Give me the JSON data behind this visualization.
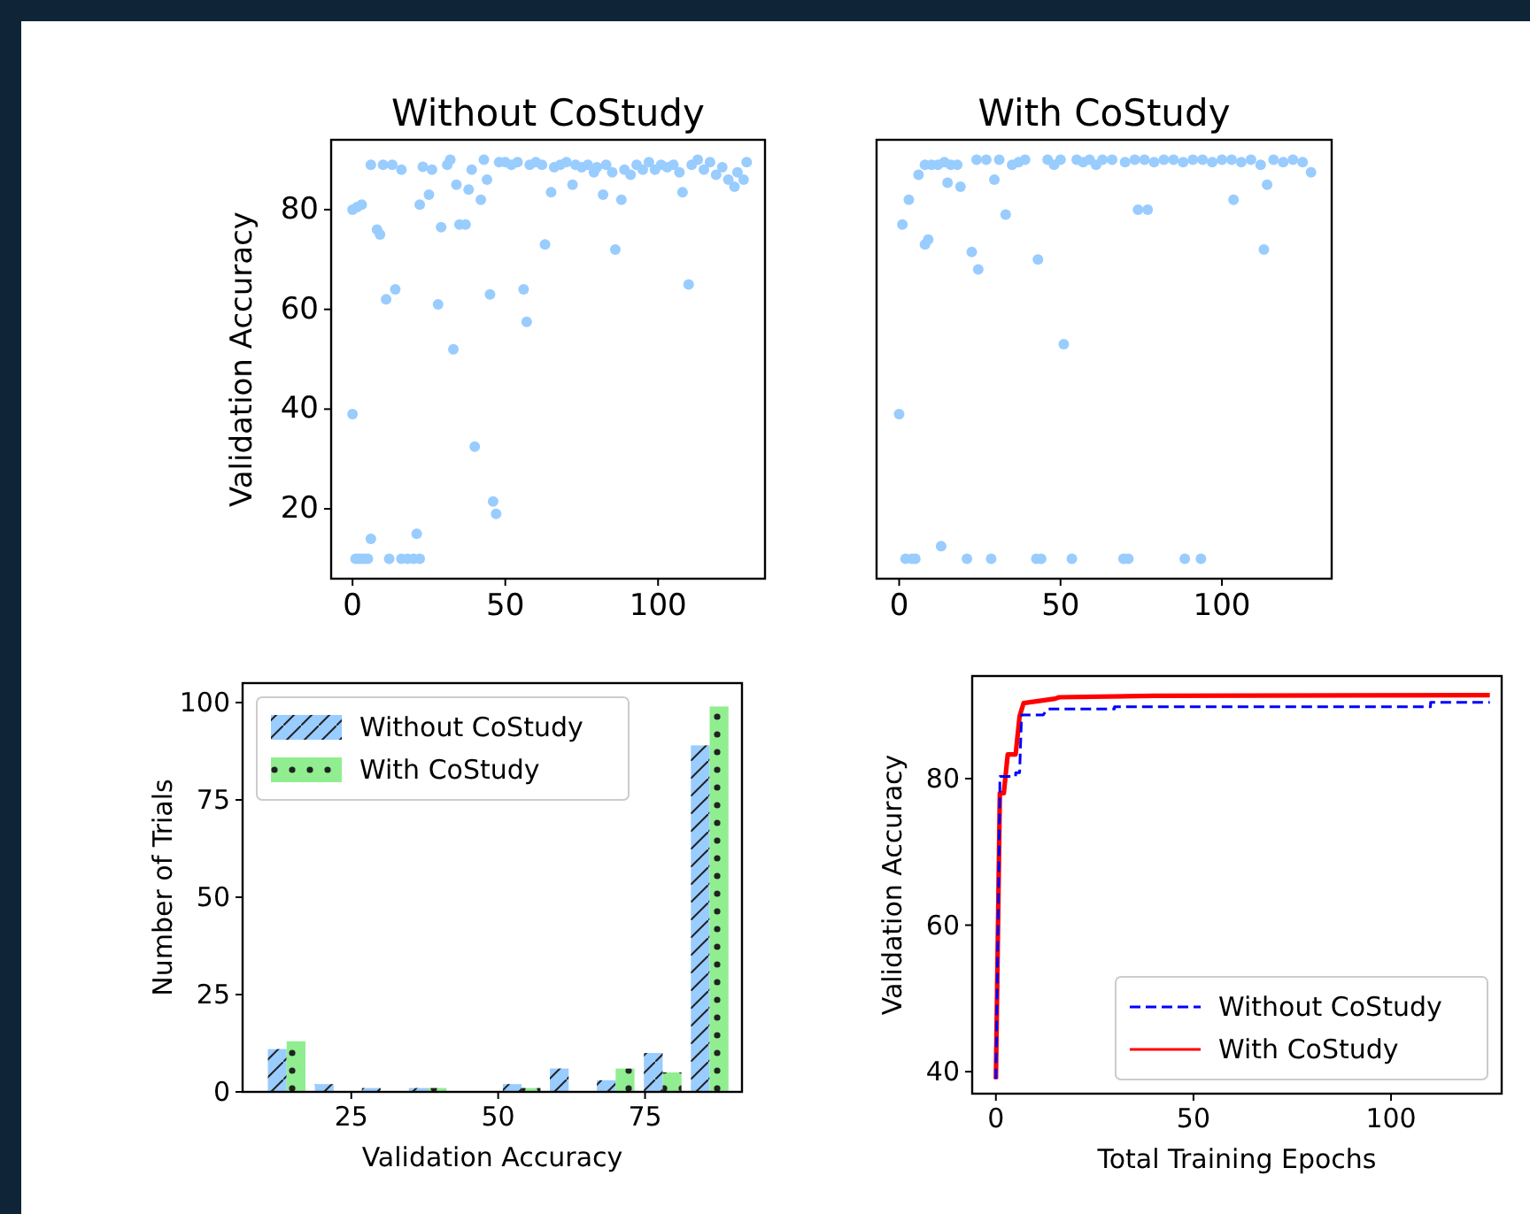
{
  "chart_data": [
    {
      "type": "scatter",
      "title": "Without CoStudy",
      "ylabel": "Validation Accuracy",
      "marker": "circle",
      "xlim": [
        -7,
        135
      ],
      "ylim": [
        6,
        94
      ],
      "xticks": [
        0,
        50,
        100
      ],
      "yticks": [
        20,
        40,
        60,
        80
      ],
      "series": [
        {
          "color": "#99ccff",
          "x": [
            0,
            0,
            1.5,
            3,
            1,
            2,
            3,
            4,
            5,
            6,
            6,
            8,
            9,
            10,
            13,
            16,
            11,
            14,
            12,
            16,
            18,
            20,
            22,
            21,
            22,
            25,
            23,
            26,
            28,
            29,
            31,
            32,
            33,
            34,
            35,
            37,
            38,
            39,
            40,
            42,
            43,
            44,
            45,
            46,
            47,
            48,
            50,
            52,
            54,
            56,
            57,
            58,
            60,
            62,
            63,
            65,
            66,
            68,
            70,
            72,
            73,
            75,
            77,
            79,
            80,
            82,
            83,
            85,
            86,
            88,
            89,
            91,
            93,
            95,
            97,
            99,
            101,
            103,
            105,
            107,
            108,
            110,
            111,
            113,
            115,
            117,
            119,
            121,
            123,
            125,
            126,
            128,
            129
          ],
          "values": [
            39,
            80,
            80.5,
            81,
            10,
            10,
            10,
            10,
            10,
            14,
            89,
            76,
            75,
            89,
            89,
            88,
            62,
            64,
            10,
            10,
            10,
            10,
            10,
            15,
            81,
            83,
            88.6,
            88,
            61,
            76.5,
            89,
            90,
            52,
            85,
            77,
            77,
            84,
            88,
            32.5,
            82,
            90,
            86,
            63,
            21.5,
            19,
            89.5,
            89.5,
            89,
            89.5,
            64,
            57.5,
            89,
            89.5,
            89,
            73,
            83.5,
            88.5,
            89,
            89.5,
            85,
            89,
            88.5,
            89,
            87.5,
            88.5,
            83,
            89,
            87.5,
            72,
            82,
            88,
            87,
            89,
            88,
            89.5,
            88,
            89,
            88.5,
            89,
            87.5,
            83.5,
            65,
            89,
            90,
            88,
            89.5,
            87,
            88.5,
            86,
            84.6,
            87.5,
            86,
            89.5
          ]
        }
      ]
    },
    {
      "type": "scatter",
      "title": "With CoStudy",
      "marker": "circle",
      "tick_labels": "x",
      "xlim": [
        -7,
        134
      ],
      "ylim": [
        6,
        94
      ],
      "xticks": [
        0,
        50,
        100
      ],
      "series": [
        {
          "color": "#99ccff",
          "x": [
            0,
            1,
            2,
            4,
            5,
            3,
            6,
            8,
            10,
            12,
            14,
            16,
            8,
            9,
            13,
            15,
            19,
            18,
            21,
            22.5,
            24.5,
            24,
            27,
            28.5,
            29.5,
            31,
            33,
            35,
            37,
            39,
            42.5,
            44,
            43,
            46,
            48,
            50,
            51,
            53.5,
            55,
            57,
            59,
            61,
            63,
            66,
            69.5,
            71,
            70,
            74,
            77,
            73,
            76,
            79,
            82,
            85,
            88.5,
            93.5,
            88,
            91,
            94,
            97,
            100,
            103.6,
            103,
            106,
            109,
            113,
            114,
            112,
            116,
            119,
            122,
            125,
            127.6
          ],
          "values": [
            39,
            77,
            10,
            10,
            10,
            82,
            87,
            89,
            89,
            89,
            89.5,
            89,
            73,
            74,
            12.5,
            85.4,
            84.6,
            89,
            10,
            71.5,
            68,
            90,
            90,
            10,
            86,
            90,
            79,
            89,
            89.5,
            90,
            10,
            10,
            70,
            90,
            89,
            90,
            53,
            10,
            90,
            89.5,
            90,
            89,
            90,
            90,
            10,
            10,
            89.5,
            80,
            80,
            90,
            90,
            89.5,
            90,
            90,
            10,
            10,
            89.5,
            90,
            90,
            89.5,
            90,
            82,
            90,
            89.5,
            90,
            72,
            85,
            89,
            90,
            89.5,
            90,
            89.5,
            87.5
          ]
        }
      ]
    },
    {
      "type": "histogram",
      "xlabel": "Validation Accuracy",
      "ylabel": "Number of Trials",
      "legend": "top left",
      "xlim": [
        6.5,
        91.5
      ],
      "ylim": [
        0,
        105
      ],
      "xticks": [
        25,
        50,
        75
      ],
      "yticks": [
        0,
        25,
        50,
        75,
        100
      ],
      "bins": [
        10,
        18,
        26,
        34,
        42,
        50,
        58,
        66,
        74,
        82,
        90
      ],
      "series": [
        {
          "name": "Without CoStudy",
          "color": "#99ccff",
          "values": [
            11,
            2,
            1,
            1,
            0,
            2,
            6,
            3,
            10,
            89
          ]
        },
        {
          "name": "With CoStudy",
          "color": "#90ee90",
          "values": [
            13,
            0,
            0,
            1,
            0,
            1,
            0,
            6,
            5,
            99
          ]
        }
      ]
    },
    {
      "type": "line",
      "xlabel": "Total Training Epochs",
      "ylabel": "Validation Accuracy",
      "legend": "bottom right",
      "xlim": [
        -6,
        128
      ],
      "ylim": [
        37,
        94
      ],
      "xticks": [
        0,
        50,
        100
      ],
      "yticks": [
        40,
        60,
        80
      ],
      "series": [
        {
          "name": "Without CoStudy",
          "color": "#0000ff",
          "line_style": "dashed",
          "x": [
            0,
            1,
            1,
            5,
            5,
            6,
            6.5,
            12,
            13,
            30,
            30,
            110,
            110,
            125
          ],
          "values": [
            39,
            78,
            80.3,
            80.3,
            80.8,
            80.8,
            88.7,
            88.7,
            89.5,
            89.5,
            89.8,
            89.8,
            90.4,
            90.4
          ]
        },
        {
          "name": "With CoStudy",
          "color": "#ff0000",
          "line_style": "solid",
          "x": [
            0,
            1,
            2,
            3,
            5,
            6,
            7,
            15,
            16,
            40,
            125
          ],
          "values": [
            39,
            78,
            78,
            83.3,
            83.3,
            88.5,
            90.3,
            90.9,
            91.1,
            91.3,
            91.4
          ]
        }
      ]
    }
  ]
}
